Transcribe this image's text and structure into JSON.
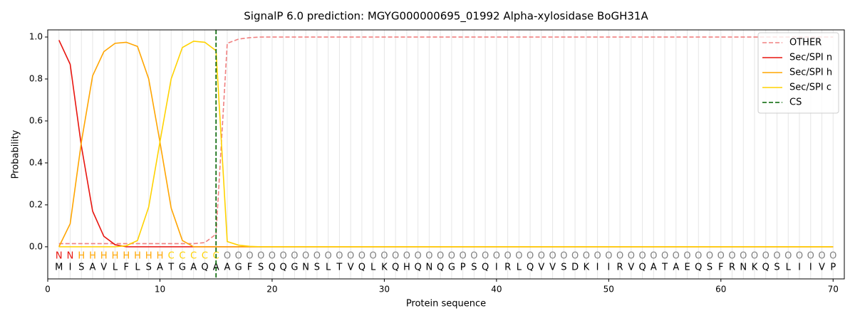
{
  "chart_data": {
    "type": "line",
    "title": "SignalP 6.0 prediction: MGYG000000695_01992 Alpha-xylosidase BoGH31A",
    "x_label": "Protein sequence",
    "y_label": "Probability",
    "x": [
      1,
      2,
      3,
      4,
      5,
      6,
      7,
      8,
      9,
      10,
      11,
      12,
      13,
      14,
      15,
      16,
      17,
      18,
      19,
      20,
      21,
      22,
      23,
      24,
      25,
      26,
      27,
      28,
      29,
      30,
      31,
      32,
      33,
      34,
      35,
      36,
      37,
      38,
      39,
      40,
      41,
      42,
      43,
      44,
      45,
      46,
      47,
      48,
      49,
      50,
      51,
      52,
      53,
      54,
      55,
      56,
      57,
      58,
      59,
      60,
      61,
      62,
      63,
      64,
      65,
      66,
      67,
      68,
      69,
      70
    ],
    "residues": [
      "M",
      "I",
      "S",
      "A",
      "V",
      "L",
      "F",
      "L",
      "S",
      "A",
      "T",
      "G",
      "A",
      "Q",
      "A",
      "A",
      "G",
      "F",
      "S",
      "Q",
      "Q",
      "G",
      "N",
      "S",
      "L",
      "T",
      "V",
      "Q",
      "L",
      "K",
      "Q",
      "H",
      "Q",
      "N",
      "Q",
      "G",
      "P",
      "S",
      "Q",
      "I",
      "R",
      "L",
      "Q",
      "V",
      "V",
      "S",
      "D",
      "K",
      "I",
      "I",
      "R",
      "V",
      "Q",
      "A",
      "T",
      "A",
      "E",
      "Q",
      "S",
      "F",
      "R",
      "N",
      "K",
      "Q",
      "S",
      "L",
      "I",
      "I",
      "V",
      "P"
    ],
    "labels": [
      "N",
      "N",
      "H",
      "H",
      "H",
      "H",
      "H",
      "H",
      "H",
      "H",
      "C",
      "C",
      "C",
      "C",
      "C",
      "O",
      "O",
      "O",
      "O",
      "O",
      "O",
      "O",
      "O",
      "O",
      "O",
      "O",
      "O",
      "O",
      "O",
      "O",
      "O",
      "O",
      "O",
      "O",
      "O",
      "O",
      "O",
      "O",
      "O",
      "O",
      "O",
      "O",
      "O",
      "O",
      "O",
      "O",
      "O",
      "O",
      "O",
      "O",
      "O",
      "O",
      "O",
      "O",
      "O",
      "O",
      "O",
      "O",
      "O",
      "O",
      "O",
      "O",
      "O",
      "O",
      "O",
      "O",
      "O",
      "O",
      "O",
      "O"
    ],
    "label_colors": {
      "N": "#e8150f",
      "H": "#ffa500",
      "C": "#ffd200",
      "O": "#808080"
    },
    "series": [
      {
        "name": "OTHER",
        "color": "#f08080",
        "dashed": true,
        "values": [
          0.015,
          0.015,
          0.015,
          0.015,
          0.015,
          0.015,
          0.015,
          0.015,
          0.015,
          0.015,
          0.015,
          0.015,
          0.015,
          0.02,
          0.06,
          0.97,
          0.99,
          0.997,
          1,
          1,
          1,
          1,
          1,
          1,
          1,
          1,
          1,
          1,
          1,
          1,
          1,
          1,
          1,
          1,
          1,
          1,
          1,
          1,
          1,
          1,
          1,
          1,
          1,
          1,
          1,
          1,
          1,
          1,
          1,
          1,
          1,
          1,
          1,
          1,
          1,
          1,
          1,
          1,
          1,
          1,
          1,
          1,
          1,
          1,
          1,
          1,
          1,
          1,
          1,
          1
        ]
      },
      {
        "name": "Sec/SPI n",
        "color": "#e8150f",
        "dashed": false,
        "values": [
          0.985,
          0.87,
          0.48,
          0.17,
          0.05,
          0.01,
          0,
          0,
          0,
          0,
          0,
          0,
          0,
          0,
          0,
          0,
          0,
          0,
          0,
          0,
          0,
          0,
          0,
          0,
          0,
          0,
          0,
          0,
          0,
          0,
          0,
          0,
          0,
          0,
          0,
          0,
          0,
          0,
          0,
          0,
          0,
          0,
          0,
          0,
          0,
          0,
          0,
          0,
          0,
          0,
          0,
          0,
          0,
          0,
          0,
          0,
          0,
          0,
          0,
          0,
          0,
          0,
          0,
          0,
          0,
          0,
          0,
          0,
          0,
          0
        ]
      },
      {
        "name": "Sec/SPI h",
        "color": "#ffa500",
        "dashed": false,
        "values": [
          0,
          0.11,
          0.5,
          0.815,
          0.93,
          0.97,
          0.975,
          0.955,
          0.8,
          0.5,
          0.185,
          0.03,
          0,
          0,
          0,
          0,
          0,
          0,
          0,
          0,
          0,
          0,
          0,
          0,
          0,
          0,
          0,
          0,
          0,
          0,
          0,
          0,
          0,
          0,
          0,
          0,
          0,
          0,
          0,
          0,
          0,
          0,
          0,
          0,
          0,
          0,
          0,
          0,
          0,
          0,
          0,
          0,
          0,
          0,
          0,
          0,
          0,
          0,
          0,
          0,
          0,
          0,
          0,
          0,
          0,
          0,
          0,
          0,
          0,
          0
        ]
      },
      {
        "name": "Sec/SPI c",
        "color": "#ffd200",
        "dashed": false,
        "values": [
          0,
          0,
          0,
          0,
          0,
          0,
          0.005,
          0.03,
          0.19,
          0.5,
          0.8,
          0.95,
          0.98,
          0.975,
          0.935,
          0.025,
          0.008,
          0.002,
          0,
          0,
          0,
          0,
          0,
          0,
          0,
          0,
          0,
          0,
          0,
          0,
          0,
          0,
          0,
          0,
          0,
          0,
          0,
          0,
          0,
          0,
          0,
          0,
          0,
          0,
          0,
          0,
          0,
          0,
          0,
          0,
          0,
          0,
          0,
          0,
          0,
          0,
          0,
          0,
          0,
          0,
          0,
          0,
          0,
          0,
          0,
          0,
          0,
          0,
          0,
          0
        ]
      }
    ],
    "cs": {
      "name": "CS",
      "color": "#006400",
      "x": 15
    },
    "xlim": [
      0,
      71
    ],
    "ylim": [
      -0.153,
      1.034
    ],
    "xticks": [
      0,
      10,
      20,
      30,
      40,
      50,
      60,
      70
    ],
    "yticks": [
      {
        "value": 0,
        "label": "0.0"
      },
      {
        "value": 0.2,
        "label": "0.2"
      },
      {
        "value": 0.4,
        "label": "0.4"
      },
      {
        "value": 0.6,
        "label": "0.6"
      },
      {
        "value": 0.8,
        "label": "0.8"
      },
      {
        "value": 1,
        "label": "1.0"
      }
    ],
    "grid": true,
    "legend": "upper right"
  }
}
